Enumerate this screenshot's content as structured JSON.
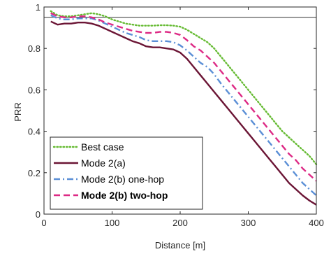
{
  "chart_data": {
    "type": "line",
    "xlabel": "Distance [m]",
    "ylabel": "PRR",
    "xlim": [
      0,
      400
    ],
    "ylim": [
      0,
      1
    ],
    "xticks": [
      0,
      100,
      200,
      300,
      400
    ],
    "yticks": [
      0,
      0.2,
      0.4,
      0.6,
      0.8,
      1
    ],
    "ytick_labels": [
      "0",
      "0.2",
      "0.4",
      "0.6",
      "0.8",
      "1"
    ],
    "grid": false,
    "legend_position": "bottom-left",
    "reference_line": {
      "y": 0.95,
      "color": "#333333"
    },
    "x": [
      10,
      20,
      30,
      40,
      50,
      60,
      70,
      80,
      90,
      100,
      110,
      120,
      130,
      140,
      150,
      160,
      170,
      180,
      190,
      200,
      210,
      220,
      230,
      240,
      250,
      260,
      270,
      280,
      290,
      300,
      310,
      320,
      330,
      340,
      350,
      360,
      370,
      380,
      390,
      400
    ],
    "series": [
      {
        "name": "Best case",
        "color": "#66bb33",
        "dash": "dotted",
        "bold": false,
        "values": [
          0.98,
          0.96,
          0.955,
          0.955,
          0.96,
          0.965,
          0.97,
          0.965,
          0.955,
          0.94,
          0.93,
          0.92,
          0.915,
          0.91,
          0.91,
          0.91,
          0.912,
          0.912,
          0.91,
          0.905,
          0.89,
          0.87,
          0.85,
          0.83,
          0.8,
          0.76,
          0.72,
          0.68,
          0.64,
          0.6,
          0.56,
          0.52,
          0.48,
          0.44,
          0.4,
          0.37,
          0.34,
          0.31,
          0.28,
          0.24
        ]
      },
      {
        "name": "Mode 2(a)",
        "color": "#6b1535",
        "dash": "solid",
        "bold": false,
        "values": [
          0.93,
          0.915,
          0.92,
          0.92,
          0.925,
          0.925,
          0.92,
          0.91,
          0.895,
          0.88,
          0.865,
          0.85,
          0.835,
          0.825,
          0.81,
          0.805,
          0.805,
          0.8,
          0.795,
          0.78,
          0.75,
          0.71,
          0.67,
          0.63,
          0.59,
          0.55,
          0.51,
          0.47,
          0.43,
          0.39,
          0.35,
          0.31,
          0.27,
          0.23,
          0.19,
          0.15,
          0.12,
          0.09,
          0.065,
          0.045
        ]
      },
      {
        "name": "Mode 2(b) one-hop",
        "color": "#5b8fd6",
        "dash": "dashdot",
        "bold": false,
        "values": [
          0.96,
          0.945,
          0.94,
          0.94,
          0.945,
          0.945,
          0.945,
          0.935,
          0.92,
          0.905,
          0.89,
          0.875,
          0.865,
          0.855,
          0.84,
          0.835,
          0.835,
          0.835,
          0.83,
          0.815,
          0.79,
          0.76,
          0.73,
          0.71,
          0.675,
          0.63,
          0.59,
          0.55,
          0.51,
          0.47,
          0.43,
          0.39,
          0.35,
          0.31,
          0.27,
          0.23,
          0.19,
          0.15,
          0.12,
          0.09
        ]
      },
      {
        "name": "Mode 2(b) two-hop",
        "color": "#dd2a85",
        "dash": "dashed",
        "bold": true,
        "values": [
          0.97,
          0.955,
          0.95,
          0.95,
          0.955,
          0.955,
          0.95,
          0.94,
          0.925,
          0.915,
          0.905,
          0.895,
          0.885,
          0.88,
          0.875,
          0.875,
          0.88,
          0.88,
          0.875,
          0.865,
          0.84,
          0.81,
          0.79,
          0.76,
          0.73,
          0.69,
          0.65,
          0.61,
          0.57,
          0.53,
          0.49,
          0.45,
          0.41,
          0.37,
          0.33,
          0.29,
          0.26,
          0.22,
          0.19,
          0.16
        ]
      }
    ]
  }
}
